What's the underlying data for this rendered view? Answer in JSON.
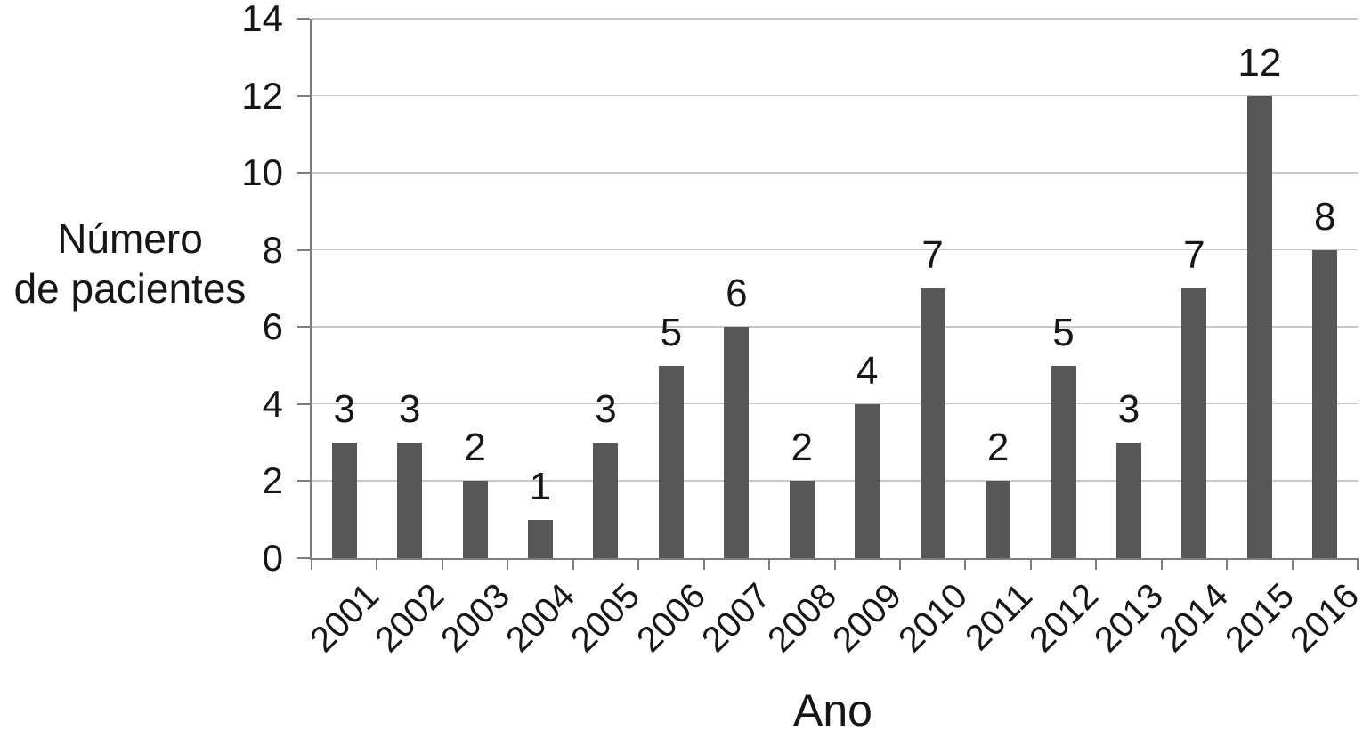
{
  "chart_data": {
    "type": "bar",
    "title": "",
    "categories": [
      "2001",
      "2002",
      "2003",
      "2004",
      "2005",
      "2006",
      "2007",
      "2008",
      "2009",
      "2010",
      "2011",
      "2012",
      "2013",
      "2014",
      "2015",
      "2016"
    ],
    "values": [
      3,
      3,
      2,
      1,
      3,
      5,
      6,
      2,
      4,
      7,
      2,
      5,
      3,
      7,
      12,
      8
    ],
    "data_labels": [
      3,
      3,
      2,
      1,
      3,
      5,
      6,
      2,
      4,
      7,
      2,
      5,
      3,
      7,
      12,
      8
    ],
    "xlabel": "Ano",
    "ylabel": "Número de pacientes",
    "ylabel_lines": [
      "Número",
      "de pacientes"
    ],
    "ylim": [
      0,
      14
    ],
    "yticks": [
      0,
      2,
      4,
      6,
      8,
      10,
      12,
      14
    ],
    "grid": "horizontal",
    "legend": "none",
    "bar_color": "#575757",
    "axis_color": "#7d7d7d",
    "grid_color": "#c8c8c8",
    "text_color": "#161616"
  }
}
